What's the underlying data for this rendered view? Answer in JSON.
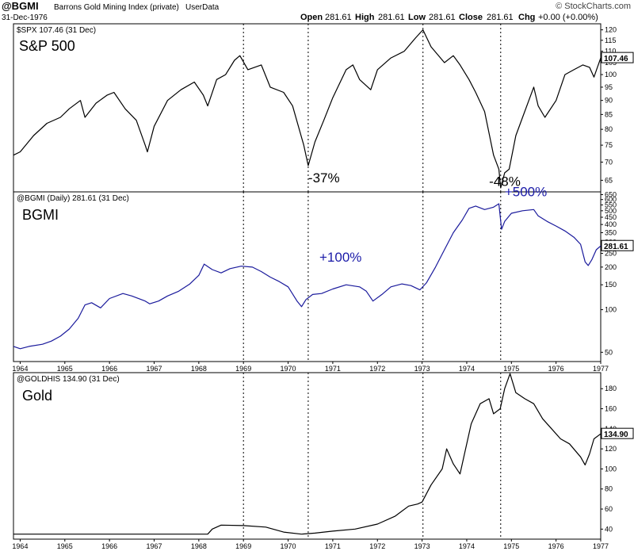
{
  "header": {
    "symbol": "@BGMI",
    "description": "Barrons Gold Mining Index (private)",
    "userdata": "UserData",
    "date": "31-Dec-1976",
    "open_label": "Open",
    "open": "281.61",
    "high_label": "High",
    "high": "281.61",
    "low_label": "Low",
    "low": "281.61",
    "close_label": "Close",
    "close": "281.61",
    "chg_label": "Chg",
    "chg": "+0.00 (+0.00%)",
    "logo": "© StockCharts.com"
  },
  "colors": {
    "spx": "#000000",
    "bgmi": "#1a1a9c",
    "gold": "#000000",
    "grid": "#000000",
    "annotation_blue": "#1a1aa8"
  },
  "chart_data": [
    {
      "type": "line",
      "id": "spx",
      "legend": "$SPX 107.46 (31 Dec)",
      "title": "S&P 500",
      "last_value_label": "107.46",
      "scale": "log",
      "ylim": [
        62,
        123
      ],
      "yticks": [
        65,
        70,
        75,
        80,
        85,
        90,
        95,
        100,
        105,
        110,
        115,
        120
      ],
      "annotations": [
        {
          "text": "-37%",
          "x": 1970.45,
          "y": 64.5,
          "color": "#000000"
        },
        {
          "text": "-48%",
          "x": 1974.5,
          "y": 63.5,
          "color": "#000000"
        }
      ],
      "series": [
        {
          "name": "$SPX",
          "points": [
            [
              1963.85,
              72
            ],
            [
              1964.0,
              73
            ],
            [
              1964.3,
              78
            ],
            [
              1964.6,
              82
            ],
            [
              1964.9,
              84
            ],
            [
              1965.1,
              87
            ],
            [
              1965.35,
              90
            ],
            [
              1965.45,
              84
            ],
            [
              1965.7,
              89
            ],
            [
              1965.95,
              92
            ],
            [
              1966.1,
              93
            ],
            [
              1966.35,
              87
            ],
            [
              1966.6,
              83
            ],
            [
              1966.8,
              75
            ],
            [
              1966.85,
              73
            ],
            [
              1967.0,
              81
            ],
            [
              1967.3,
              90
            ],
            [
              1967.6,
              94
            ],
            [
              1967.9,
              97
            ],
            [
              1968.1,
              92
            ],
            [
              1968.2,
              88
            ],
            [
              1968.4,
              98
            ],
            [
              1968.6,
              100
            ],
            [
              1968.8,
              106
            ],
            [
              1968.92,
              108
            ],
            [
              1969.1,
              102
            ],
            [
              1969.4,
              104
            ],
            [
              1969.6,
              95
            ],
            [
              1969.9,
              93
            ],
            [
              1970.1,
              88
            ],
            [
              1970.35,
              75
            ],
            [
              1970.45,
              69
            ],
            [
              1970.6,
              76
            ],
            [
              1970.8,
              83
            ],
            [
              1971.0,
              91
            ],
            [
              1971.3,
              102
            ],
            [
              1971.45,
              104
            ],
            [
              1971.6,
              98
            ],
            [
              1971.85,
              94
            ],
            [
              1972.0,
              102
            ],
            [
              1972.3,
              107
            ],
            [
              1972.6,
              110
            ],
            [
              1972.85,
              116
            ],
            [
              1973.02,
              120
            ],
            [
              1973.2,
              112
            ],
            [
              1973.5,
              105
            ],
            [
              1973.7,
              108
            ],
            [
              1973.85,
              104
            ],
            [
              1974.05,
              98
            ],
            [
              1974.2,
              93
            ],
            [
              1974.4,
              86
            ],
            [
              1974.6,
              72
            ],
            [
              1974.72,
              68
            ],
            [
              1974.76,
              63
            ],
            [
              1974.85,
              67
            ],
            [
              1974.95,
              68
            ],
            [
              1975.1,
              78
            ],
            [
              1975.25,
              84
            ],
            [
              1975.5,
              95
            ],
            [
              1975.6,
              88
            ],
            [
              1975.75,
              84
            ],
            [
              1976.0,
              90
            ],
            [
              1976.2,
              100
            ],
            [
              1976.4,
              102
            ],
            [
              1976.6,
              104
            ],
            [
              1976.75,
              103
            ],
            [
              1976.85,
              99
            ],
            [
              1977.0,
              107
            ]
          ]
        }
      ]
    },
    {
      "type": "line",
      "id": "bgmi",
      "legend": "@BGMI (Daily) 281.61 (31 Dec)",
      "title": "BGMI",
      "last_value_label": "281.61",
      "scale": "log",
      "ylim": [
        43,
        680
      ],
      "yticks": [
        50,
        100,
        150,
        200,
        250,
        300,
        350,
        400,
        450,
        500,
        550,
        600,
        650
      ],
      "annotations": [
        {
          "text": "+100%",
          "x": 1970.7,
          "y": 218,
          "color": "#1a1aa8"
        },
        {
          "text": "+500%",
          "x": 1974.85,
          "y": 635,
          "color": "#1a1aa8"
        }
      ],
      "series": [
        {
          "name": "@BGMI",
          "points": [
            [
              1963.85,
              55
            ],
            [
              1964.0,
              53
            ],
            [
              1964.2,
              55
            ],
            [
              1964.5,
              57
            ],
            [
              1964.7,
              60
            ],
            [
              1964.9,
              65
            ],
            [
              1965.1,
              73
            ],
            [
              1965.3,
              87
            ],
            [
              1965.45,
              108
            ],
            [
              1965.6,
              112
            ],
            [
              1965.8,
              103
            ],
            [
              1966.0,
              120
            ],
            [
              1966.3,
              130
            ],
            [
              1966.5,
              125
            ],
            [
              1966.8,
              115
            ],
            [
              1966.9,
              110
            ],
            [
              1967.1,
              115
            ],
            [
              1967.3,
              125
            ],
            [
              1967.55,
              135
            ],
            [
              1967.8,
              152
            ],
            [
              1968.0,
              175
            ],
            [
              1968.12,
              210
            ],
            [
              1968.3,
              192
            ],
            [
              1968.5,
              182
            ],
            [
              1968.7,
              195
            ],
            [
              1968.95,
              203
            ],
            [
              1969.2,
              200
            ],
            [
              1969.4,
              186
            ],
            [
              1969.6,
              170
            ],
            [
              1969.8,
              158
            ],
            [
              1970.0,
              145
            ],
            [
              1970.2,
              115
            ],
            [
              1970.3,
              105
            ],
            [
              1970.4,
              118
            ],
            [
              1970.55,
              128
            ],
            [
              1970.75,
              130
            ],
            [
              1971.0,
              140
            ],
            [
              1971.3,
              150
            ],
            [
              1971.6,
              145
            ],
            [
              1971.75,
              135
            ],
            [
              1971.9,
              115
            ],
            [
              1972.1,
              128
            ],
            [
              1972.3,
              145
            ],
            [
              1972.55,
              152
            ],
            [
              1972.75,
              148
            ],
            [
              1972.95,
              138
            ],
            [
              1973.1,
              155
            ],
            [
              1973.3,
              200
            ],
            [
              1973.5,
              265
            ],
            [
              1973.7,
              350
            ],
            [
              1973.9,
              430
            ],
            [
              1974.05,
              520
            ],
            [
              1974.2,
              540
            ],
            [
              1974.4,
              510
            ],
            [
              1974.6,
              530
            ],
            [
              1974.72,
              560
            ],
            [
              1974.78,
              370
            ],
            [
              1974.85,
              420
            ],
            [
              1975.0,
              480
            ],
            [
              1975.25,
              500
            ],
            [
              1975.5,
              510
            ],
            [
              1975.6,
              460
            ],
            [
              1975.8,
              420
            ],
            [
              1976.0,
              390
            ],
            [
              1976.2,
              360
            ],
            [
              1976.4,
              325
            ],
            [
              1976.55,
              290
            ],
            [
              1976.65,
              218
            ],
            [
              1976.72,
              205
            ],
            [
              1976.8,
              225
            ],
            [
              1976.9,
              265
            ],
            [
              1977.0,
              282
            ]
          ]
        }
      ]
    },
    {
      "type": "line",
      "id": "gold",
      "legend": "@GOLDHIS 134.90 (31 Dec)",
      "title": "Gold",
      "last_value_label": "134.90",
      "scale": "linear",
      "ylim": [
        30,
        196
      ],
      "yticks": [
        40,
        60,
        80,
        100,
        120,
        140,
        160,
        180
      ],
      "series": [
        {
          "name": "Gold",
          "points": [
            [
              1963.85,
              35
            ],
            [
              1968.2,
              35
            ],
            [
              1968.3,
              40
            ],
            [
              1968.5,
              44
            ],
            [
              1969.0,
              43.5
            ],
            [
              1969.5,
              42
            ],
            [
              1969.9,
              37
            ],
            [
              1970.3,
              35
            ],
            [
              1970.6,
              36
            ],
            [
              1971.0,
              38
            ],
            [
              1971.5,
              40
            ],
            [
              1972.0,
              45
            ],
            [
              1972.4,
              53
            ],
            [
              1972.7,
              63
            ],
            [
              1972.9,
              65
            ],
            [
              1973.0,
              67
            ],
            [
              1973.2,
              84
            ],
            [
              1973.45,
              100
            ],
            [
              1973.55,
              120
            ],
            [
              1973.7,
              105
            ],
            [
              1973.85,
              95
            ],
            [
              1973.95,
              115
            ],
            [
              1974.1,
              145
            ],
            [
              1974.3,
              165
            ],
            [
              1974.5,
              170
            ],
            [
              1974.6,
              155
            ],
            [
              1974.75,
              160
            ],
            [
              1974.85,
              180
            ],
            [
              1974.97,
              195
            ],
            [
              1975.1,
              176
            ],
            [
              1975.3,
              170
            ],
            [
              1975.5,
              165
            ],
            [
              1975.7,
              150
            ],
            [
              1975.9,
              140
            ],
            [
              1976.1,
              130
            ],
            [
              1976.3,
              125
            ],
            [
              1976.55,
              112
            ],
            [
              1976.65,
              104
            ],
            [
              1976.75,
              115
            ],
            [
              1976.85,
              130
            ],
            [
              1977.0,
              135
            ]
          ]
        }
      ]
    }
  ],
  "x_axis": {
    "tick_labels": [
      "1964",
      "1965",
      "1966",
      "1967",
      "1968",
      "1969",
      "1970",
      "1971",
      "1972",
      "1973",
      "1974",
      "1975",
      "1976",
      "1977"
    ],
    "xlim": [
      1963.85,
      1977.0
    ],
    "vlines": [
      1969.0,
      1970.45,
      1973.02,
      1974.76
    ]
  }
}
